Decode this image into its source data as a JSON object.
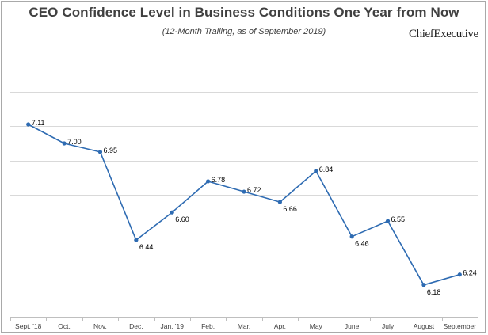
{
  "header": {
    "title": "CEO Confidence Level in Business Conditions One Year from Now",
    "subtitle": "(12-Month Trailing, as of September 2019)",
    "brand": "ChiefExecutive"
  },
  "colors": {
    "line": "#2e6bb2",
    "grid": "#d9d9d9",
    "text": "#404040"
  },
  "chart_data": {
    "type": "line",
    "title": "CEO Confidence Level in Business Conditions One Year from Now",
    "subtitle": "(12-Month Trailing, as of September 2019)",
    "xlabel": "",
    "ylabel": "",
    "categories": [
      "Sept. '18",
      "Oct.",
      "Nov.",
      "Dec.",
      "Jan. '19",
      "Feb.",
      "Mar.",
      "Apr.",
      "May",
      "June",
      "July",
      "August",
      "September"
    ],
    "series": [
      {
        "values": [
          7.11,
          7.0,
          6.95,
          6.44,
          6.6,
          6.78,
          6.72,
          6.66,
          6.84,
          6.46,
          6.55,
          6.18,
          6.24
        ]
      }
    ],
    "data_labels": [
      "7.11",
      "7.00",
      "6.95",
      "6.44",
      "6.60",
      "6.78",
      "6.72",
      "6.66",
      "6.84",
      "6.46",
      "6.55",
      "6.18",
      "6.24"
    ],
    "ylim": [
      6.0,
      7.5
    ],
    "yticks": [
      6.1,
      6.3,
      6.5,
      6.7,
      6.9,
      7.1,
      7.3
    ],
    "y_tick_labels_visible": false,
    "grid": true,
    "legend": "none"
  }
}
